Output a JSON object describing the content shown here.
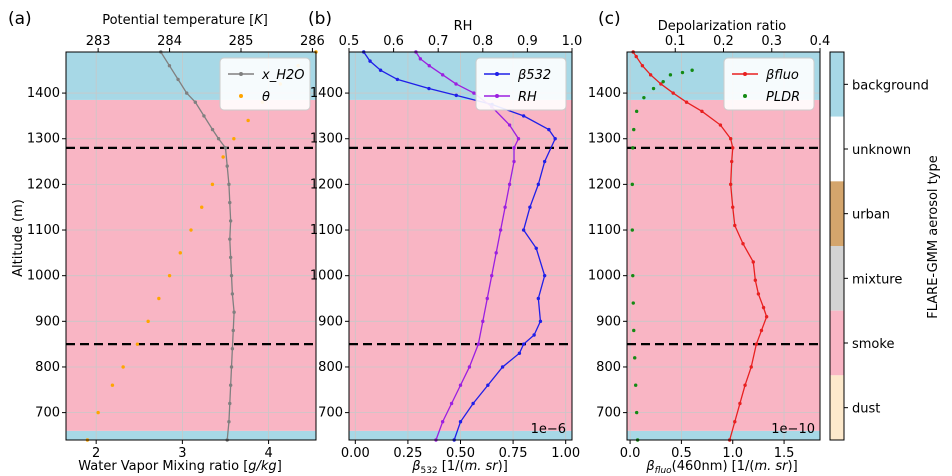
{
  "colors": {
    "smoke": "#f9b5c4",
    "background": "#a7d8e6",
    "unknown": "#ffffff",
    "urban": "#d4a56c",
    "mixture": "#d3d3d3",
    "dust": "#fde9cc",
    "water_vapor": "#808080",
    "theta": "#ffa500",
    "beta532": "#1f1fe8",
    "rh": "#9b1fe0",
    "beta_fluo": "#e82020",
    "pldr": "#138a13"
  },
  "layers": {
    "shared_ylim": [
      640,
      1490
    ],
    "background_below": [
      640,
      660
    ],
    "smoke": [
      660,
      1385
    ],
    "background_above": [
      1385,
      1490
    ],
    "dashed_lines": [
      850,
      1280
    ]
  },
  "chart_data": [
    {
      "panel": "(a)",
      "type": "line",
      "xlabel": "Water Vapor Mixing ratio [g/kg]",
      "x2label": "Potential temperature [K]",
      "ylabel": "Altitude (m)",
      "xlim": [
        1.65,
        4.55
      ],
      "x2lim": [
        282.55,
        286.05
      ],
      "xticks": [
        "2",
        "3",
        "4"
      ],
      "xtick_values": [
        2,
        3,
        4
      ],
      "x2ticks": [
        "283",
        "284",
        "285",
        "286"
      ],
      "x2tick_values": [
        283,
        284,
        285,
        286
      ],
      "yticks": [
        "700",
        "800",
        "900",
        "1000",
        "1100",
        "1200",
        "1300",
        "1400"
      ],
      "ytick_values": [
        700,
        800,
        900,
        1000,
        1100,
        1200,
        1300,
        1400
      ],
      "legend": [
        "x_H2O",
        "θ"
      ],
      "series": [
        {
          "name": "x_H2O",
          "axis": "bottom",
          "color_key": "water_vapor",
          "points": [
            [
              3.52,
              640
            ],
            [
              3.54,
              680
            ],
            [
              3.55,
              720
            ],
            [
              3.56,
              760
            ],
            [
              3.57,
              800
            ],
            [
              3.58,
              840
            ],
            [
              3.59,
              880
            ],
            [
              3.6,
              920
            ],
            [
              3.58,
              960
            ],
            [
              3.57,
              1000
            ],
            [
              3.56,
              1040
            ],
            [
              3.55,
              1080
            ],
            [
              3.56,
              1120
            ],
            [
              3.55,
              1160
            ],
            [
              3.54,
              1200
            ],
            [
              3.52,
              1240
            ],
            [
              3.5,
              1280
            ],
            [
              3.42,
              1300
            ],
            [
              3.35,
              1320
            ],
            [
              3.25,
              1350
            ],
            [
              3.15,
              1380
            ],
            [
              3.05,
              1400
            ],
            [
              2.95,
              1430
            ],
            [
              2.85,
              1460
            ],
            [
              2.75,
              1490
            ]
          ]
        },
        {
          "name": "θ",
          "axis": "top",
          "color_key": "theta",
          "points": [
            [
              282.85,
              640
            ],
            [
              283.0,
              700
            ],
            [
              283.2,
              760
            ],
            [
              283.35,
              800
            ],
            [
              283.55,
              850
            ],
            [
              283.7,
              900
            ],
            [
              283.85,
              950
            ],
            [
              284.0,
              1000
            ],
            [
              284.15,
              1050
            ],
            [
              284.3,
              1100
            ],
            [
              284.45,
              1150
            ],
            [
              284.6,
              1200
            ],
            [
              284.75,
              1260
            ],
            [
              284.9,
              1300
            ],
            [
              285.1,
              1340
            ],
            [
              285.3,
              1380
            ],
            [
              285.55,
              1420
            ],
            [
              285.8,
              1460
            ],
            [
              286.05,
              1490
            ]
          ]
        }
      ]
    },
    {
      "panel": "(b)",
      "type": "line",
      "xlabel": "β532 [1/(m. sr)]",
      "x2label": "RH",
      "xlim": [
        -0.03,
        1.03
      ],
      "x2lim": [
        0.5,
        1.0
      ],
      "scale_note": "1e−6",
      "xticks": [
        "0.00",
        "0.25",
        "0.50",
        "0.75",
        "1.00"
      ],
      "xtick_values": [
        0.0,
        0.25,
        0.5,
        0.75,
        1.0
      ],
      "x2ticks": [
        "0.5",
        "0.6",
        "0.7",
        "0.8",
        "0.9",
        "1.0"
      ],
      "x2tick_values": [
        0.5,
        0.6,
        0.7,
        0.8,
        0.9,
        1.0
      ],
      "legend": [
        "β532",
        "RH"
      ],
      "series": [
        {
          "name": "β532",
          "axis": "bottom",
          "color_key": "beta532",
          "points": [
            [
              0.47,
              640
            ],
            [
              0.5,
              680
            ],
            [
              0.56,
              720
            ],
            [
              0.63,
              760
            ],
            [
              0.7,
              800
            ],
            [
              0.78,
              830
            ],
            [
              0.8,
              850
            ],
            [
              0.85,
              870
            ],
            [
              0.88,
              900
            ],
            [
              0.87,
              950
            ],
            [
              0.9,
              1000
            ],
            [
              0.86,
              1060
            ],
            [
              0.8,
              1100
            ],
            [
              0.83,
              1150
            ],
            [
              0.87,
              1200
            ],
            [
              0.9,
              1250
            ],
            [
              0.95,
              1300
            ],
            [
              0.92,
              1320
            ],
            [
              0.8,
              1350
            ],
            [
              0.65,
              1375
            ],
            [
              0.48,
              1395
            ],
            [
              0.35,
              1410
            ],
            [
              0.2,
              1430
            ],
            [
              0.12,
              1450
            ],
            [
              0.07,
              1470
            ],
            [
              0.04,
              1490
            ]
          ]
        },
        {
          "name": "RH",
          "axis": "top",
          "color_key": "rh",
          "points": [
            [
              0.695,
              640
            ],
            [
              0.71,
              680
            ],
            [
              0.73,
              720
            ],
            [
              0.75,
              760
            ],
            [
              0.77,
              800
            ],
            [
              0.79,
              850
            ],
            [
              0.8,
              900
            ],
            [
              0.81,
              950
            ],
            [
              0.82,
              1000
            ],
            [
              0.83,
              1050
            ],
            [
              0.84,
              1100
            ],
            [
              0.85,
              1150
            ],
            [
              0.86,
              1200
            ],
            [
              0.87,
              1250
            ],
            [
              0.87,
              1280
            ],
            [
              0.88,
              1300
            ],
            [
              0.86,
              1330
            ],
            [
              0.82,
              1370
            ],
            [
              0.78,
              1400
            ],
            [
              0.74,
              1420
            ],
            [
              0.71,
              1440
            ],
            [
              0.68,
              1460
            ],
            [
              0.66,
              1475
            ],
            [
              0.65,
              1490
            ]
          ]
        }
      ]
    },
    {
      "panel": "(c)",
      "type": "line",
      "xlabel": "βfluo(460nm) [1/(m. sr)]",
      "x2label": "Depolarization ratio",
      "xlim": [
        -0.03,
        1.85
      ],
      "x2lim": [
        0.0,
        0.4
      ],
      "scale_note": "1e−10",
      "xticks": [
        "0.0",
        "0.5",
        "1.0",
        "1.5"
      ],
      "xtick_values": [
        0.0,
        0.5,
        1.0,
        1.5
      ],
      "x2ticks": [
        "0.1",
        "0.2",
        "0.3",
        "0.4"
      ],
      "x2tick_values": [
        0.1,
        0.2,
        0.3,
        0.4
      ],
      "legend": [
        "βfluo",
        "PLDR"
      ],
      "series": [
        {
          "name": "βfluo",
          "axis": "bottom",
          "color_key": "beta_fluo",
          "points": [
            [
              0.97,
              640
            ],
            [
              1.02,
              680
            ],
            [
              1.07,
              720
            ],
            [
              1.12,
              760
            ],
            [
              1.18,
              800
            ],
            [
              1.23,
              850
            ],
            [
              1.28,
              880
            ],
            [
              1.33,
              910
            ],
            [
              1.3,
              930
            ],
            [
              1.25,
              960
            ],
            [
              1.22,
              990
            ],
            [
              1.2,
              1030
            ],
            [
              1.1,
              1070
            ],
            [
              1.02,
              1110
            ],
            [
              1.0,
              1150
            ],
            [
              0.98,
              1200
            ],
            [
              0.99,
              1250
            ],
            [
              1.0,
              1280
            ],
            [
              0.98,
              1300
            ],
            [
              0.88,
              1330
            ],
            [
              0.7,
              1360
            ],
            [
              0.55,
              1380
            ],
            [
              0.42,
              1400
            ],
            [
              0.3,
              1420
            ],
            [
              0.2,
              1440
            ],
            [
              0.12,
              1460
            ],
            [
              0.06,
              1480
            ],
            [
              0.03,
              1490
            ]
          ]
        },
        {
          "name": "PLDR",
          "axis": "top",
          "color_key": "pldr",
          "points": [
            [
              0.022,
              640
            ],
            [
              0.02,
              700
            ],
            [
              0.018,
              760
            ],
            [
              0.016,
              820
            ],
            [
              0.014,
              880
            ],
            [
              0.013,
              940
            ],
            [
              0.012,
              1000
            ],
            [
              0.011,
              1100
            ],
            [
              0.011,
              1200
            ],
            [
              0.012,
              1280
            ],
            [
              0.014,
              1320
            ],
            [
              0.02,
              1360
            ],
            [
              0.035,
              1390
            ],
            [
              0.055,
              1410
            ],
            [
              0.075,
              1425
            ],
            [
              0.09,
              1440
            ],
            [
              0.115,
              1445
            ],
            [
              0.135,
              1450
            ]
          ]
        }
      ]
    }
  ],
  "colorbar": {
    "label": "FLARE-GMM aerosol type",
    "classes": [
      {
        "name": "background",
        "color_key": "background"
      },
      {
        "name": "unknown",
        "color_key": "unknown"
      },
      {
        "name": "urban",
        "color_key": "urban"
      },
      {
        "name": "mixture",
        "color_key": "mixture"
      },
      {
        "name": "smoke",
        "color_key": "smoke"
      },
      {
        "name": "dust",
        "color_key": "dust"
      }
    ]
  }
}
